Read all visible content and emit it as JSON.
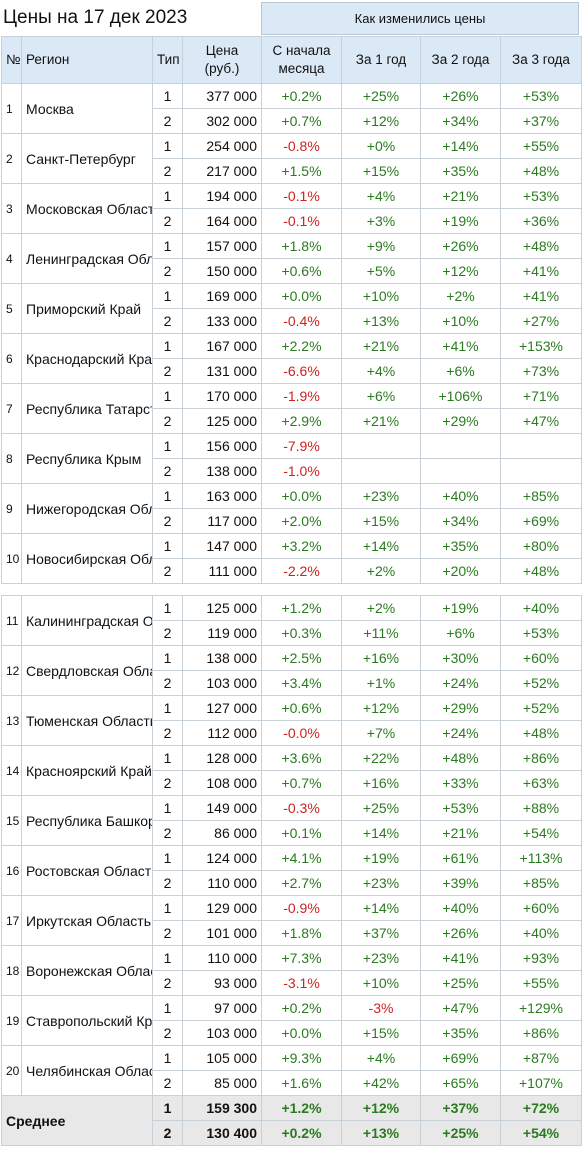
{
  "title": "Цены на 17 дек 2023",
  "change_header": "Как изменились цены",
  "columns": {
    "no": "№",
    "region": "Регион",
    "type": "Тип",
    "price": "Цена (руб.)",
    "month": "С начала месяца",
    "y1": "За 1 год",
    "y2": "За 2 года",
    "y3": "За 3 года"
  },
  "colors": {
    "positive": "#2a7a1f",
    "negative": "#cc2222",
    "header_bg": "#dbe8f5"
  },
  "regions": [
    {
      "no": "1",
      "name": "Москва",
      "rows": [
        [
          "1",
          "377 000",
          "+0.2%",
          "+25%",
          "+26%",
          "+53%"
        ],
        [
          "2",
          "302 000",
          "+0.7%",
          "+12%",
          "+34%",
          "+37%"
        ]
      ]
    },
    {
      "no": "2",
      "name": "Санкт-Петербург",
      "rows": [
        [
          "1",
          "254 000",
          "-0.8%",
          "+0%",
          "+14%",
          "+55%"
        ],
        [
          "2",
          "217 000",
          "+1.5%",
          "+15%",
          "+35%",
          "+48%"
        ]
      ]
    },
    {
      "no": "3",
      "name": "Московская Область",
      "rows": [
        [
          "1",
          "194 000",
          "-0.1%",
          "+4%",
          "+21%",
          "+53%"
        ],
        [
          "2",
          "164 000",
          "-0.1%",
          "+3%",
          "+19%",
          "+36%"
        ]
      ]
    },
    {
      "no": "4",
      "name": "Ленинградская Область",
      "rows": [
        [
          "1",
          "157 000",
          "+1.8%",
          "+9%",
          "+26%",
          "+48%"
        ],
        [
          "2",
          "150 000",
          "+0.6%",
          "+5%",
          "+12%",
          "+41%"
        ]
      ]
    },
    {
      "no": "5",
      "name": "Приморский Край",
      "rows": [
        [
          "1",
          "169 000",
          "+0.0%",
          "+10%",
          "+2%",
          "+41%"
        ],
        [
          "2",
          "133 000",
          "-0.4%",
          "+13%",
          "+10%",
          "+27%"
        ]
      ]
    },
    {
      "no": "6",
      "name": "Краснодарский Край",
      "rows": [
        [
          "1",
          "167 000",
          "+2.2%",
          "+21%",
          "+41%",
          "+153%"
        ],
        [
          "2",
          "131 000",
          "-6.6%",
          "+4%",
          "+6%",
          "+73%"
        ]
      ]
    },
    {
      "no": "7",
      "name": "Республика Татарстан",
      "rows": [
        [
          "1",
          "170 000",
          "-1.9%",
          "+6%",
          "+106%",
          "+71%"
        ],
        [
          "2",
          "125 000",
          "+2.9%",
          "+21%",
          "+29%",
          "+47%"
        ]
      ]
    },
    {
      "no": "8",
      "name": "Республика Крым",
      "rows": [
        [
          "1",
          "156 000",
          "-7.9%",
          "",
          "",
          ""
        ],
        [
          "2",
          "138 000",
          "-1.0%",
          "",
          "",
          ""
        ]
      ]
    },
    {
      "no": "9",
      "name": "Нижегородская Область",
      "rows": [
        [
          "1",
          "163 000",
          "+0.0%",
          "+23%",
          "+40%",
          "+85%"
        ],
        [
          "2",
          "117 000",
          "+2.0%",
          "+15%",
          "+34%",
          "+69%"
        ]
      ]
    },
    {
      "no": "10",
      "name": "Новосибирская Область",
      "rows": [
        [
          "1",
          "147 000",
          "+3.2%",
          "+14%",
          "+35%",
          "+80%"
        ],
        [
          "2",
          "111 000",
          "-2.2%",
          "+2%",
          "+20%",
          "+48%"
        ]
      ]
    },
    {
      "no": "11",
      "name": "Калининградская Область",
      "rows": [
        [
          "1",
          "125 000",
          "+1.2%",
          "+2%",
          "+19%",
          "+40%"
        ],
        [
          "2",
          "119 000",
          "+0.3%",
          "+11%",
          "+6%",
          "+53%"
        ]
      ]
    },
    {
      "no": "12",
      "name": "Свердловская Область",
      "rows": [
        [
          "1",
          "138 000",
          "+2.5%",
          "+16%",
          "+30%",
          "+60%"
        ],
        [
          "2",
          "103 000",
          "+3.4%",
          "+1%",
          "+24%",
          "+52%"
        ]
      ]
    },
    {
      "no": "13",
      "name": "Тюменская Область",
      "rows": [
        [
          "1",
          "127 000",
          "+0.6%",
          "+12%",
          "+29%",
          "+52%"
        ],
        [
          "2",
          "112 000",
          "-0.0%",
          "+7%",
          "+24%",
          "+48%"
        ]
      ]
    },
    {
      "no": "14",
      "name": "Красноярский Край",
      "rows": [
        [
          "1",
          "128 000",
          "+3.6%",
          "+22%",
          "+48%",
          "+86%"
        ],
        [
          "2",
          "108 000",
          "+0.7%",
          "+16%",
          "+33%",
          "+63%"
        ]
      ]
    },
    {
      "no": "15",
      "name": "Республика Башкортостан",
      "rows": [
        [
          "1",
          "149 000",
          "-0.3%",
          "+25%",
          "+53%",
          "+88%"
        ],
        [
          "2",
          "86 000",
          "+0.1%",
          "+14%",
          "+21%",
          "+54%"
        ]
      ]
    },
    {
      "no": "16",
      "name": "Ростовская Область",
      "rows": [
        [
          "1",
          "124 000",
          "+4.1%",
          "+19%",
          "+61%",
          "+113%"
        ],
        [
          "2",
          "110 000",
          "+2.7%",
          "+23%",
          "+39%",
          "+85%"
        ]
      ]
    },
    {
      "no": "17",
      "name": "Иркутская Область",
      "rows": [
        [
          "1",
          "129 000",
          "-0.9%",
          "+14%",
          "+40%",
          "+60%"
        ],
        [
          "2",
          "101 000",
          "+1.8%",
          "+37%",
          "+26%",
          "+40%"
        ]
      ]
    },
    {
      "no": "18",
      "name": "Воронежская Область",
      "rows": [
        [
          "1",
          "110 000",
          "+7.3%",
          "+23%",
          "+41%",
          "+93%"
        ],
        [
          "2",
          "93 000",
          "-3.1%",
          "+10%",
          "+25%",
          "+55%"
        ]
      ]
    },
    {
      "no": "19",
      "name": "Ставропольский Край",
      "rows": [
        [
          "1",
          "97 000",
          "+0.2%",
          "-3%",
          "+47%",
          "+129%"
        ],
        [
          "2",
          "103 000",
          "+0.0%",
          "+15%",
          "+35%",
          "+86%"
        ]
      ]
    },
    {
      "no": "20",
      "name": "Челябинская Область",
      "rows": [
        [
          "1",
          "105 000",
          "+9.3%",
          "+4%",
          "+69%",
          "+87%"
        ],
        [
          "2",
          "85 000",
          "+1.6%",
          "+42%",
          "+65%",
          "+107%"
        ]
      ]
    }
  ],
  "average": {
    "label": "Среднее",
    "rows": [
      [
        "1",
        "159 300",
        "+1.2%",
        "+12%",
        "+37%",
        "+72%"
      ],
      [
        "2",
        "130 400",
        "+0.2%",
        "+13%",
        "+25%",
        "+54%"
      ]
    ]
  }
}
